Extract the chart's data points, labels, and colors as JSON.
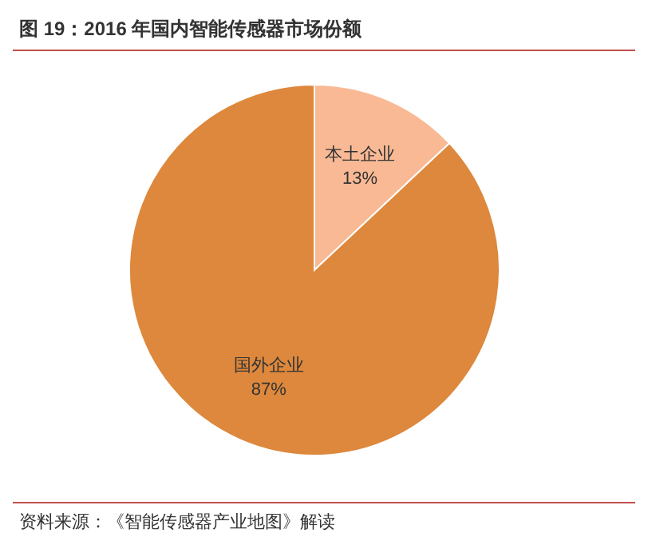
{
  "chart_data": {
    "type": "pie",
    "title": "图 19：2016 年国内智能传感器市场份额",
    "categories": [
      "本土企业",
      "国外企业"
    ],
    "values": [
      13,
      87
    ],
    "value_labels": [
      "13%",
      "87%"
    ],
    "colors": [
      "#f8b994",
      "#dd883c"
    ],
    "legend": false,
    "annotations": [
      "资料来源：《智能传感器产业地图》解读"
    ]
  }
}
